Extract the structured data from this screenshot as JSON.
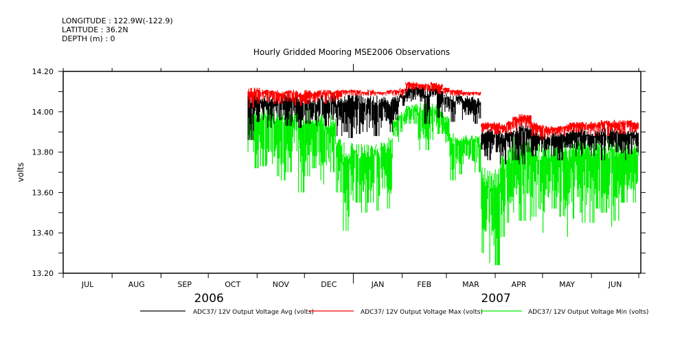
{
  "header": {
    "longitude": "LONGITUDE : 122.9W(-122.9)",
    "latitude": "LATITUDE : 36.2N",
    "depth": "DEPTH (m) : 0"
  },
  "chart_data": {
    "type": "line",
    "title": "Hourly Gridded Mooring MSE2006 Observations",
    "ylabel": "volts",
    "xlabel": "",
    "ylim": [
      13.2,
      14.2
    ],
    "yticks": [
      "14.20",
      "14.00",
      "13.80",
      "13.60",
      "13.40",
      "13.20"
    ],
    "ytick_values": [
      14.2,
      14.0,
      13.8,
      13.6,
      13.4,
      13.2
    ],
    "xlim_days_from_2006_07_01": [
      0,
      365
    ],
    "months": [
      {
        "label": "JUL",
        "start_day": 0
      },
      {
        "label": "AUG",
        "start_day": 31
      },
      {
        "label": "SEP",
        "start_day": 62
      },
      {
        "label": "OCT",
        "start_day": 92
      },
      {
        "label": "NOV",
        "start_day": 123
      },
      {
        "label": "DEC",
        "start_day": 153
      },
      {
        "label": "JAN",
        "start_day": 184
      },
      {
        "label": "FEB",
        "start_day": 215
      },
      {
        "label": "MAR",
        "start_day": 243
      },
      {
        "label": "APR",
        "start_day": 274
      },
      {
        "label": "MAY",
        "start_day": 304
      },
      {
        "label": "JUN",
        "start_day": 335
      }
    ],
    "years": [
      {
        "label": "2006",
        "day": 92
      },
      {
        "label": "2007",
        "day": 274
      }
    ],
    "series_start_day": 117,
    "bin_days": 4,
    "series": [
      {
        "name": "ADC37/ 12V Output Voltage Min (volts)",
        "color": "#00ee00",
        "high": [
          14.05,
          14.04,
          14.04,
          14.03,
          14.03,
          14.04,
          14.03,
          14.03,
          14.03,
          14.02,
          14.01,
          14.02,
          14.0,
          13.99,
          13.87,
          13.86,
          13.85,
          13.84,
          13.85,
          13.84,
          13.86,
          13.85,
          13.88,
          13.98,
          14.0,
          14.03,
          14.04,
          14.05,
          14.04,
          14.04,
          14.03,
          13.99,
          13.9,
          13.9,
          13.89,
          13.89,
          13.88,
          13.74,
          13.72,
          13.72,
          13.8,
          13.84,
          13.88,
          13.88,
          13.89,
          13.87,
          13.86,
          13.86,
          13.86,
          13.85,
          13.86,
          13.87,
          13.87,
          13.87,
          13.88,
          13.88,
          13.87,
          13.88,
          13.88,
          13.86,
          13.86,
          13.86
        ],
        "low": [
          13.8,
          13.72,
          13.73,
          13.74,
          13.68,
          13.66,
          13.7,
          13.74,
          13.6,
          13.68,
          13.72,
          13.66,
          13.64,
          13.7,
          13.6,
          13.41,
          13.48,
          13.55,
          13.5,
          13.55,
          13.51,
          13.62,
          13.52,
          13.85,
          13.9,
          13.94,
          13.94,
          13.81,
          13.81,
          13.86,
          13.89,
          13.81,
          13.66,
          13.69,
          13.74,
          13.72,
          13.7,
          13.3,
          13.25,
          13.24,
          13.38,
          13.45,
          13.5,
          13.46,
          13.46,
          13.48,
          13.4,
          13.5,
          13.52,
          13.48,
          13.38,
          13.47,
          13.5,
          13.45,
          13.45,
          13.52,
          13.5,
          13.43,
          13.46,
          13.55,
          13.55,
          13.55
        ]
      },
      {
        "name": "ADC37/ 12V Output Voltage Avg (volts)",
        "color": "#000000",
        "high": [
          14.09,
          14.09,
          14.08,
          14.08,
          14.08,
          14.08,
          14.09,
          14.09,
          14.08,
          14.08,
          14.07,
          14.09,
          14.08,
          14.09,
          14.08,
          14.09,
          14.09,
          14.09,
          14.08,
          14.08,
          14.08,
          14.08,
          14.07,
          14.08,
          14.09,
          14.13,
          14.13,
          14.13,
          14.12,
          14.13,
          14.12,
          14.09,
          14.08,
          14.09,
          14.08,
          14.08,
          14.07,
          13.92,
          13.92,
          13.91,
          13.9,
          13.91,
          13.93,
          13.95,
          13.94,
          13.91,
          13.9,
          13.89,
          13.9,
          13.9,
          13.9,
          13.91,
          13.92,
          13.91,
          13.91,
          13.91,
          13.92,
          13.92,
          13.92,
          13.92,
          13.91,
          13.91
        ],
        "low": [
          13.86,
          13.95,
          13.96,
          13.92,
          13.94,
          13.96,
          13.93,
          13.95,
          13.92,
          13.94,
          13.93,
          13.95,
          13.93,
          13.96,
          13.88,
          13.9,
          13.87,
          13.89,
          13.9,
          13.92,
          13.88,
          13.92,
          13.9,
          13.96,
          14.03,
          14.05,
          14.06,
          14.05,
          13.94,
          14.06,
          13.97,
          14.0,
          13.95,
          14.02,
          13.96,
          13.95,
          13.94,
          13.78,
          13.76,
          13.8,
          13.74,
          13.8,
          13.76,
          13.74,
          13.8,
          13.78,
          13.8,
          13.78,
          13.78,
          13.76,
          13.8,
          13.82,
          13.78,
          13.79,
          13.78,
          13.81,
          13.76,
          13.78,
          13.8,
          13.76,
          13.79,
          13.8
        ]
      },
      {
        "name": "ADC37/ 12V Output Voltage Max (volts)",
        "color": "#ff0000",
        "high": [
          14.12,
          14.12,
          14.11,
          14.11,
          14.11,
          14.1,
          14.11,
          14.11,
          14.1,
          14.11,
          14.1,
          14.11,
          14.11,
          14.11,
          14.11,
          14.11,
          14.11,
          14.11,
          14.1,
          14.11,
          14.1,
          14.1,
          14.11,
          14.11,
          14.12,
          14.15,
          14.15,
          14.14,
          14.14,
          14.15,
          14.14,
          14.12,
          14.11,
          14.11,
          14.1,
          14.1,
          14.1,
          13.95,
          13.95,
          13.95,
          13.94,
          13.96,
          13.98,
          13.99,
          13.99,
          13.95,
          13.94,
          13.93,
          13.93,
          13.93,
          13.94,
          13.95,
          13.95,
          13.95,
          13.95,
          13.95,
          13.96,
          13.96,
          13.96,
          13.96,
          13.96,
          13.95
        ],
        "low": [
          14.02,
          14.04,
          14.06,
          14.05,
          14.04,
          14.04,
          14.05,
          14.03,
          14.03,
          14.04,
          14.05,
          14.05,
          14.04,
          14.05,
          14.06,
          14.08,
          14.08,
          14.08,
          14.08,
          14.08,
          14.08,
          14.08,
          14.08,
          14.08,
          14.07,
          14.1,
          14.1,
          14.11,
          14.1,
          14.1,
          14.09,
          14.09,
          14.08,
          14.08,
          14.08,
          14.08,
          14.08,
          13.9,
          13.9,
          13.89,
          13.88,
          13.89,
          13.9,
          13.93,
          13.92,
          13.88,
          13.86,
          13.87,
          13.88,
          13.88,
          13.88,
          13.9,
          13.9,
          13.89,
          13.89,
          13.88,
          13.9,
          13.88,
          13.89,
          13.89,
          13.9,
          13.9
        ]
      }
    ],
    "legend": [
      {
        "label": "ADC37/ 12V Output Voltage Avg (volts)",
        "color": "#000000"
      },
      {
        "label": "ADC37/ 12V Output Voltage Max (volts)",
        "color": "#ff0000"
      },
      {
        "label": "ADC37/ 12V Output Voltage Min (volts)",
        "color": "#00ee00"
      }
    ],
    "legend_placement": "bottom"
  }
}
